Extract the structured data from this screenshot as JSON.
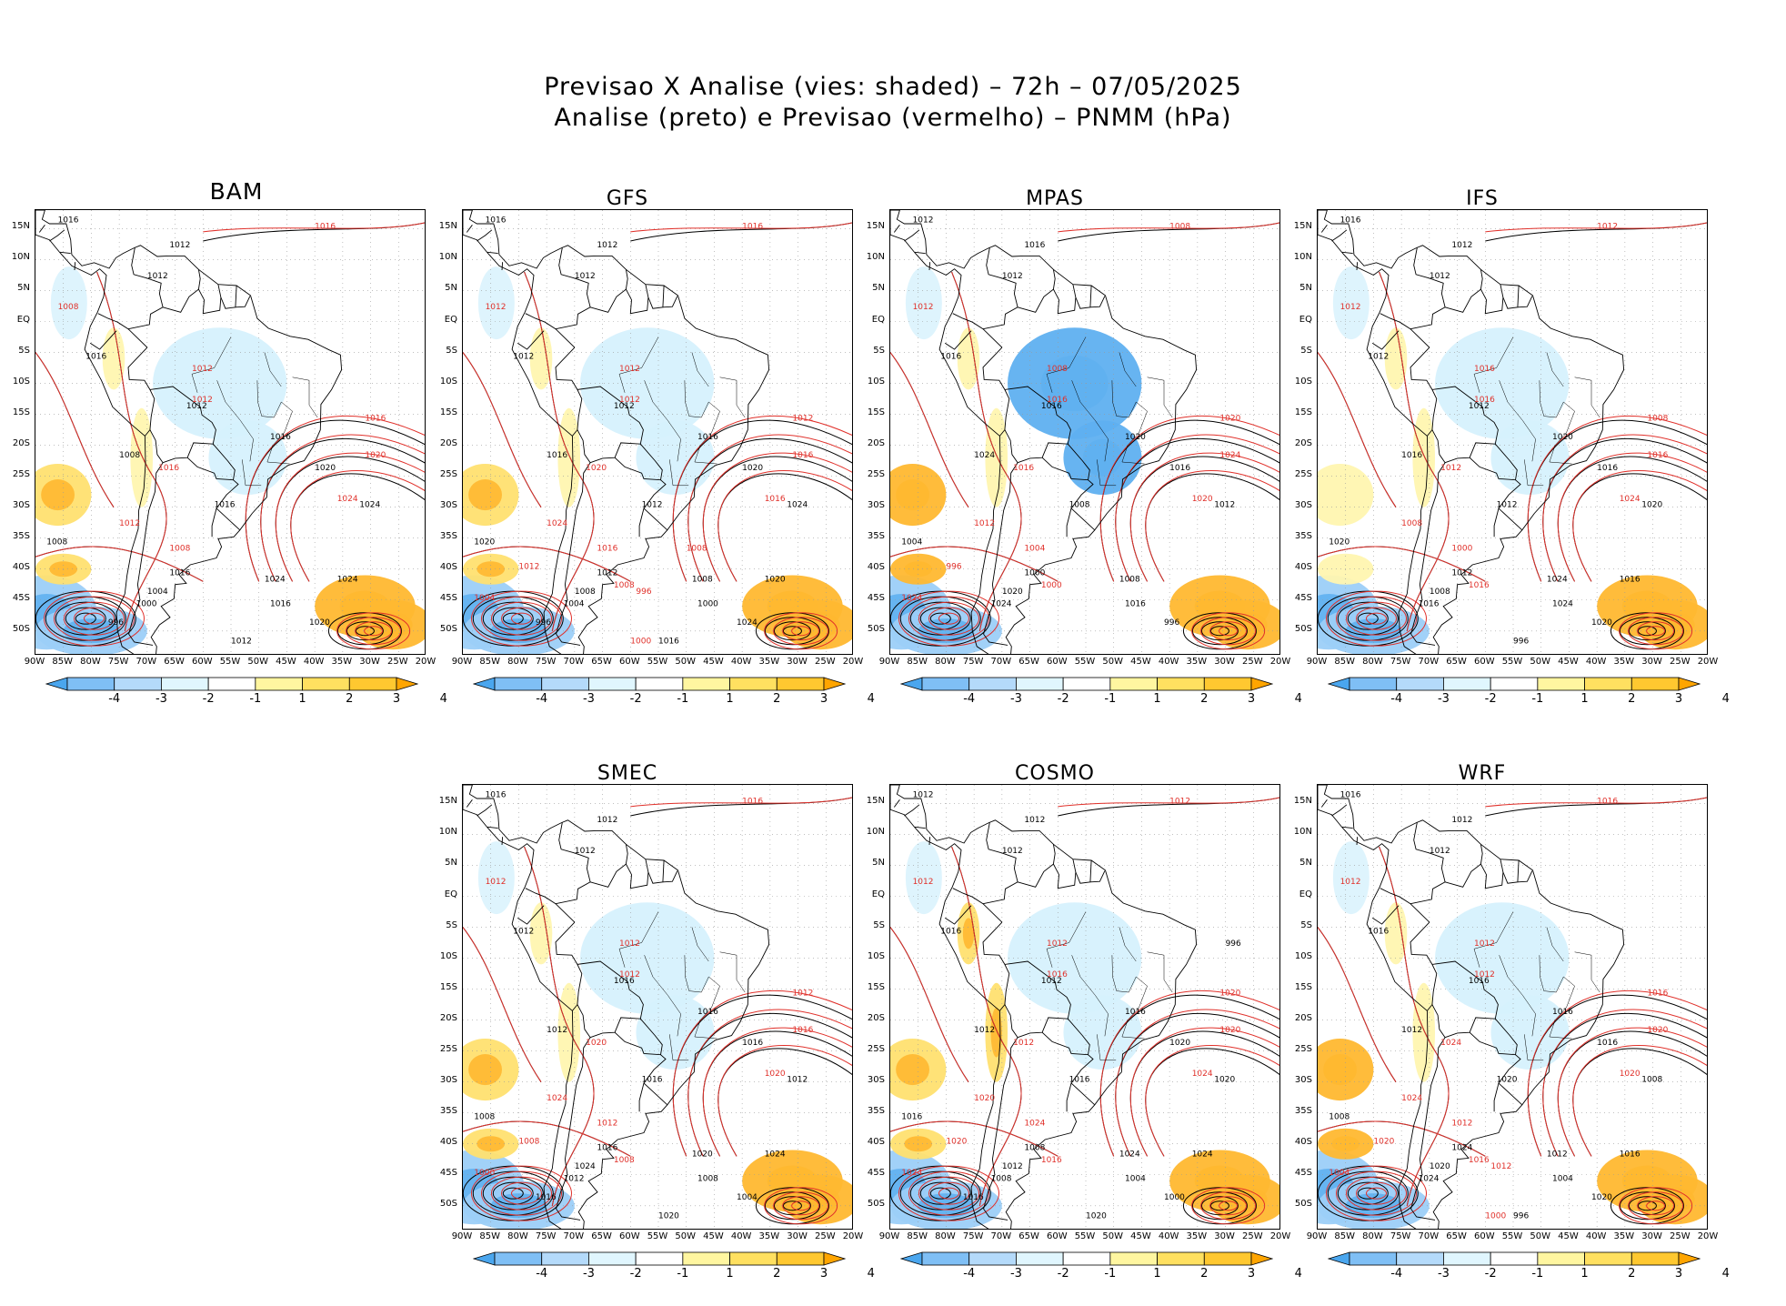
{
  "title_line1": "Previsao X Analise (vies: shaded) – 72h – 07/05/2025",
  "title_line2": "Analise (preto) e Previsao (vermelho) – PNMM (hPa)",
  "panels": [
    {
      "name": "BAM",
      "bias": {
        "andes": 1,
        "pacific": -2,
        "south_atl": 3,
        "brazil": -1,
        "southwest": 2
      },
      "labels_black": [
        "1016",
        "1012",
        "1012",
        "1016",
        "1012",
        "1016",
        "1008",
        "1016",
        "1020",
        "1024",
        "1024",
        "1008",
        "1016",
        "1004",
        "1000",
        "1016",
        "1020",
        "1024",
        "1012",
        "996"
      ],
      "labels_red": [
        "1016",
        "1008",
        "1012",
        "1012",
        "1016",
        "1020",
        "1024",
        "1016",
        "1012",
        "1008"
      ]
    },
    {
      "name": "GFS",
      "bias": {
        "andes": 1,
        "pacific": -2,
        "south_atl": 3,
        "brazil": -1,
        "southwest": 2
      },
      "labels_black": [
        "1016",
        "1012",
        "1012",
        "1012",
        "1012",
        "1016",
        "1016",
        "1012",
        "1020",
        "1024",
        "1008",
        "1020",
        "1012",
        "1008",
        "1004",
        "1000",
        "1024",
        "1020",
        "1016",
        "996"
      ],
      "labels_red": [
        "1016",
        "1012",
        "1012",
        "1012",
        "1012",
        "1016",
        "1016",
        "1020",
        "1024",
        "1016",
        "1008",
        "1012",
        "1004",
        "1000",
        "996",
        "1008"
      ]
    },
    {
      "name": "MPAS",
      "bias": {
        "andes": 1,
        "pacific": -2,
        "south_atl": 3,
        "brazil": -3,
        "southwest": 3
      },
      "labels_black": [
        "1012",
        "1016",
        "1012",
        "1016",
        "1016",
        "1020",
        "1024",
        "1008",
        "1016",
        "1012",
        "1008",
        "1004",
        "1000",
        "1020",
        "1024",
        "1016",
        "996"
      ],
      "labels_red": [
        "1008",
        "1012",
        "1008",
        "1016",
        "1020",
        "1024",
        "1020",
        "1016",
        "1012",
        "1004",
        "1000",
        "996",
        "1024"
      ]
    },
    {
      "name": "IFS",
      "bias": {
        "andes": 1,
        "pacific": -2,
        "south_atl": 3,
        "brazil": -1,
        "southwest": 1
      },
      "labels_black": [
        "1016",
        "1012",
        "1012",
        "1012",
        "1012",
        "1020",
        "1016",
        "1012",
        "1016",
        "1020",
        "1024",
        "1020",
        "1012",
        "1008",
        "1016",
        "1024",
        "1020",
        "1016",
        "996"
      ],
      "labels_red": [
        "1012",
        "1012",
        "1016",
        "1016",
        "1008",
        "1016",
        "1024",
        "1012",
        "1008",
        "1000",
        "1016"
      ]
    },
    {
      "name": "SMEC",
      "bias": {
        "andes": 1,
        "pacific": -2,
        "south_atl": 3,
        "brazil": -1,
        "southwest": 2
      },
      "labels_black": [
        "1016",
        "1012",
        "1012",
        "1012",
        "1016",
        "1016",
        "1012",
        "1016",
        "1016",
        "1012",
        "1020",
        "1008",
        "1016",
        "1024",
        "1012",
        "1008",
        "1004",
        "1024",
        "1020",
        "1016"
      ],
      "labels_red": [
        "1016",
        "1012",
        "1012",
        "1012",
        "1012",
        "1016",
        "1020",
        "1020",
        "1024",
        "1012",
        "1008",
        "1008",
        "1000"
      ]
    },
    {
      "name": "COSMO",
      "bias": {
        "andes": 2,
        "pacific": -2,
        "south_atl": 3,
        "brazil": -1,
        "southwest": 2
      },
      "labels_black": [
        "1012",
        "1012",
        "1012",
        "1016",
        "1012",
        "1016",
        "1012",
        "1016",
        "1020",
        "1020",
        "1024",
        "1016",
        "1008",
        "1012",
        "1008",
        "1004",
        "1000",
        "1024",
        "1020",
        "1016",
        "996"
      ],
      "labels_red": [
        "1012",
        "1012",
        "1012",
        "1016",
        "1020",
        "1020",
        "1024",
        "1012",
        "1020",
        "1024",
        "1016",
        "1020",
        "1024"
      ]
    },
    {
      "name": "WRF",
      "bias": {
        "andes": 1,
        "pacific": -2,
        "south_atl": 3,
        "brazil": -1,
        "southwest": 3
      },
      "labels_black": [
        "1016",
        "1012",
        "1012",
        "1016",
        "1016",
        "1016",
        "1012",
        "1020",
        "1016",
        "1008",
        "1012",
        "1008",
        "1024",
        "1020",
        "1024",
        "1004",
        "1020",
        "1016",
        "996"
      ],
      "labels_red": [
        "1016",
        "1012",
        "1012",
        "1012",
        "1016",
        "1020",
        "1020",
        "1024",
        "1024",
        "1012",
        "1016",
        "1020",
        "1004",
        "1000",
        "1012"
      ]
    }
  ],
  "lat_ticks": [
    "15N",
    "10N",
    "5N",
    "EQ",
    "5S",
    "10S",
    "15S",
    "20S",
    "25S",
    "30S",
    "35S",
    "40S",
    "45S",
    "50S"
  ],
  "lon_ticks": [
    "90W",
    "85W",
    "80W",
    "75W",
    "70W",
    "65W",
    "60W",
    "55W",
    "50W",
    "45W",
    "40W",
    "35W",
    "30W",
    "25W",
    "20W"
  ],
  "colorbar": {
    "labels": [
      "-4",
      "-3",
      "-2",
      "-1",
      "1",
      "2",
      "3",
      "4"
    ],
    "colors": [
      "#4aa6ee",
      "#7fbff5",
      "#b4dafa",
      "#e0f6fe",
      "#ffffff",
      "#fff6a0",
      "#ffe060",
      "#ffc830",
      "#ffa500"
    ]
  },
  "bias_colors": {
    "-3": "#5fb0f0",
    "-2": "#9ccff8",
    "-1": "#d6f1fd",
    "1": "#fff6b0",
    "2": "#ffe070",
    "3": "#ffb830"
  }
}
